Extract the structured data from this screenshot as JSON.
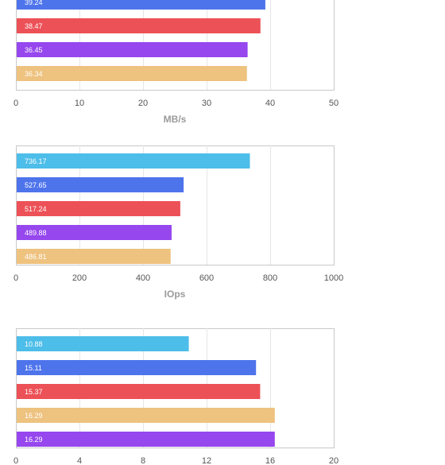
{
  "colors": {
    "cyan": "#4dbde9",
    "blue": "#4e74ec",
    "red": "#ec5157",
    "purple": "#9647ee",
    "tan": "#eec27f",
    "grid": "#e6e6e6",
    "frame": "#c9c9c9"
  },
  "chart_data": [
    {
      "type": "bar",
      "orientation": "horizontal",
      "xlabel": "MB/s",
      "xlim": [
        0,
        50
      ],
      "ticks": [
        "0",
        "10",
        "20",
        "30",
        "40",
        "50"
      ],
      "bars": [
        {
          "value": 39.24,
          "label": "39.24",
          "color": "blue"
        },
        {
          "value": 38.47,
          "label": "38.47",
          "color": "red"
        },
        {
          "value": 36.45,
          "label": "36.45",
          "color": "purple"
        },
        {
          "value": 36.34,
          "label": "36.34",
          "color": "tan"
        }
      ]
    },
    {
      "type": "bar",
      "orientation": "horizontal",
      "xlabel": "IOps",
      "xlim": [
        0,
        1000
      ],
      "ticks": [
        "0",
        "200",
        "400",
        "600",
        "800",
        "1000"
      ],
      "bars": [
        {
          "value": 736.17,
          "label": "736.17",
          "color": "cyan"
        },
        {
          "value": 527.65,
          "label": "527.65",
          "color": "blue"
        },
        {
          "value": 517.24,
          "label": "517.24",
          "color": "red"
        },
        {
          "value": 489.88,
          "label": "489.88",
          "color": "purple"
        },
        {
          "value": 486.81,
          "label": "486.81",
          "color": "tan"
        }
      ]
    },
    {
      "type": "bar",
      "orientation": "horizontal",
      "xlabel": "",
      "xlim": [
        0,
        20
      ],
      "ticks": [
        "0",
        "4",
        "8",
        "12",
        "16",
        "20"
      ],
      "bars": [
        {
          "value": 10.88,
          "label": "10.88",
          "color": "cyan"
        },
        {
          "value": 15.11,
          "label": "15.11",
          "color": "blue"
        },
        {
          "value": 15.37,
          "label": "15.37",
          "color": "red"
        },
        {
          "value": 16.29,
          "label": "16.29",
          "color": "tan"
        },
        {
          "value": 16.29,
          "label": "16.29",
          "color": "purple"
        }
      ]
    }
  ]
}
